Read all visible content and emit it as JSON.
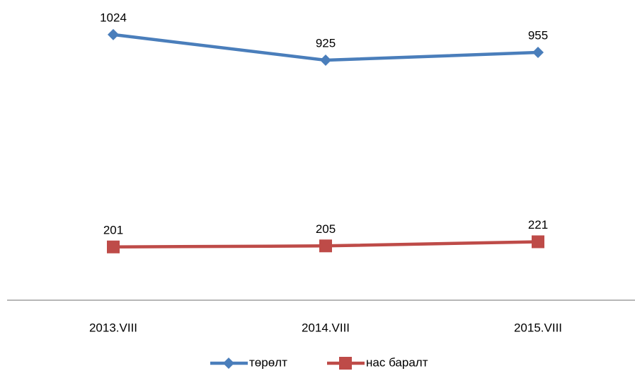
{
  "chart_data": {
    "type": "line",
    "categories": [
      "2013.VIII",
      "2014.VIII",
      "2015.VIII"
    ],
    "series": [
      {
        "name": "төрөлт",
        "color": "#4a7ebb",
        "marker": "diamond",
        "values": [
          1024,
          925,
          955
        ]
      },
      {
        "name": "нас баралт",
        "color": "#be4b48",
        "marker": "square",
        "values": [
          201,
          205,
          221
        ]
      }
    ],
    "ylim": [
      0,
      1150
    ],
    "grid": false,
    "data_labels": true,
    "legend": "bottom"
  }
}
